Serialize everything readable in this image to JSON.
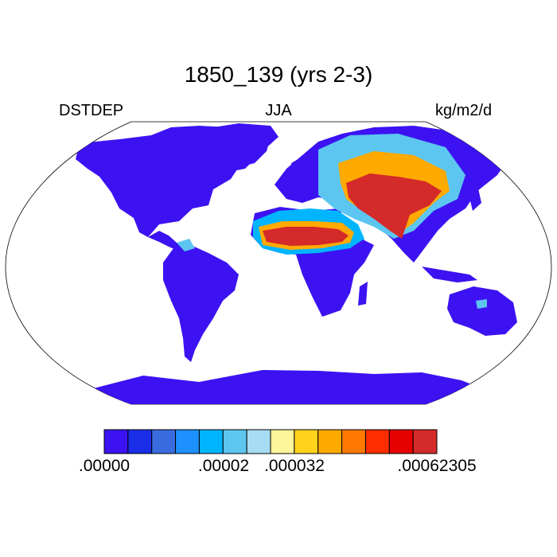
{
  "title": "1850_139 (yrs 2-3)",
  "left_label": "DSTDEP",
  "center_label": "JJA",
  "right_label": "kg/m2/d",
  "projection": "Robinson",
  "colorbar": {
    "colors": [
      "#3c12f2",
      "#1a2ee8",
      "#3a6ce0",
      "#1e90ff",
      "#00b5ff",
      "#5cc6f0",
      "#a8dcf2",
      "#fff59a",
      "#ffd21c",
      "#ffaa00",
      "#ff7a00",
      "#ff2d00",
      "#e60000",
      "#d42a2a"
    ],
    "labels": [
      ".00000",
      ".00002",
      ".000032",
      ".00062305"
    ]
  }
}
